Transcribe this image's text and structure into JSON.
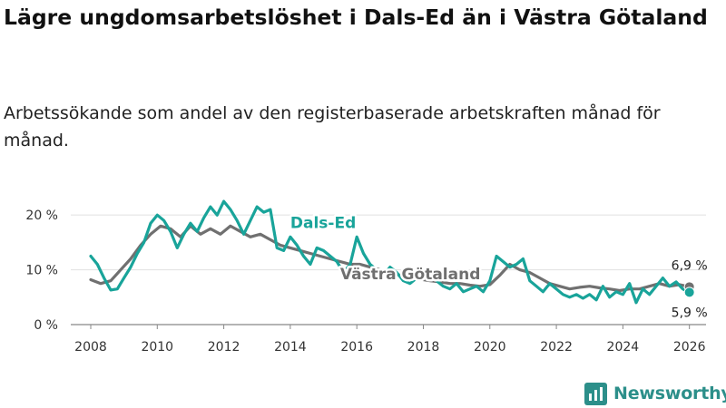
{
  "title": "Lägre ungdomsarbetslöshet i Dals-Ed än i Västra Götaland",
  "subtitle": "Arbetssökande som andel av den registerbaserade arbetskraften månad för månad.",
  "brand": {
    "name": "Newsworthy",
    "icon": "newsworthy-logo-icon"
  },
  "colors": {
    "dals_ed": "#19a49a",
    "vastra_gotaland": "#707070",
    "grid": "#e1e1e1",
    "axis": "#888888",
    "brand": "#2c8f8a"
  },
  "chart_data": {
    "type": "line",
    "title": "Lägre ungdomsarbetslöshet i Dals-Ed än i Västra Götaland",
    "subtitle": "Arbetssökande som andel av den registerbaserade arbetskraften månad för månad.",
    "xlabel": "",
    "ylabel": "",
    "x_unit": "år",
    "y_unit": "procent",
    "xlim": [
      2007.4,
      2026.5
    ],
    "ylim": [
      0,
      24
    ],
    "grid": true,
    "y_ticks": [
      {
        "value": 0,
        "label": "0 %"
      },
      {
        "value": 10,
        "label": "10 %"
      },
      {
        "value": 20,
        "label": "20 %"
      }
    ],
    "x_ticks": [
      {
        "value": 2008,
        "label": "2008"
      },
      {
        "value": 2010,
        "label": "2010"
      },
      {
        "value": 2012,
        "label": "2012"
      },
      {
        "value": 2014,
        "label": "2014"
      },
      {
        "value": 2016,
        "label": "2016"
      },
      {
        "value": 2018,
        "label": "2018"
      },
      {
        "value": 2020,
        "label": "2020"
      },
      {
        "value": 2022,
        "label": "2022"
      },
      {
        "value": 2024,
        "label": "2024"
      },
      {
        "value": 2026,
        "label": "2026"
      }
    ],
    "series": [
      {
        "name": "Västra Götaland",
        "color": "#707070",
        "label_at": [
          2015.5,
          8.3
        ],
        "end_label": "6,9 %",
        "x": [
          2008.0,
          2008.3,
          2008.6,
          2008.9,
          2009.2,
          2009.5,
          2009.8,
          2010.1,
          2010.4,
          2010.7,
          2011.0,
          2011.3,
          2011.6,
          2011.9,
          2012.2,
          2012.5,
          2012.8,
          2013.1,
          2013.4,
          2013.7,
          2014.0,
          2014.3,
          2014.6,
          2014.9,
          2015.2,
          2015.5,
          2015.8,
          2016.1,
          2016.4,
          2016.7,
          2017.0,
          2017.3,
          2017.6,
          2017.9,
          2018.2,
          2018.5,
          2018.8,
          2019.1,
          2019.4,
          2019.7,
          2020.0,
          2020.3,
          2020.6,
          2020.9,
          2021.2,
          2021.5,
          2021.8,
          2022.1,
          2022.4,
          2022.7,
          2023.0,
          2023.3,
          2023.6,
          2023.9,
          2024.2,
          2024.5,
          2024.8,
          2025.1,
          2025.4,
          2025.7,
          2026.0
        ],
        "y": [
          8.2,
          7.5,
          8.0,
          10.0,
          12.0,
          14.5,
          16.5,
          18.0,
          17.5,
          16.0,
          18.0,
          16.5,
          17.5,
          16.5,
          18.0,
          17.0,
          16.0,
          16.5,
          15.5,
          14.5,
          14.0,
          13.5,
          13.0,
          12.5,
          12.0,
          11.5,
          11.0,
          11.0,
          10.5,
          10.0,
          9.5,
          9.0,
          8.7,
          8.3,
          8.0,
          7.8,
          7.5,
          7.5,
          7.2,
          7.0,
          7.3,
          9.0,
          11.0,
          10.0,
          9.5,
          8.5,
          7.5,
          7.0,
          6.5,
          6.8,
          7.0,
          6.7,
          6.5,
          6.2,
          6.5,
          6.5,
          7.0,
          7.5,
          7.0,
          7.3,
          6.9
        ]
      },
      {
        "name": "Dals-Ed",
        "color": "#19a49a",
        "label_at": [
          2014.0,
          17.6
        ],
        "end_label": "5,9 %",
        "x": [
          2008.0,
          2008.2,
          2008.4,
          2008.6,
          2008.8,
          2009.0,
          2009.2,
          2009.4,
          2009.6,
          2009.8,
          2010.0,
          2010.2,
          2010.4,
          2010.6,
          2010.8,
          2011.0,
          2011.2,
          2011.4,
          2011.6,
          2011.8,
          2012.0,
          2012.2,
          2012.4,
          2012.6,
          2012.8,
          2013.0,
          2013.2,
          2013.4,
          2013.6,
          2013.8,
          2014.0,
          2014.2,
          2014.4,
          2014.6,
          2014.8,
          2015.0,
          2015.2,
          2015.4,
          2015.6,
          2015.8,
          2016.0,
          2016.2,
          2016.4,
          2016.6,
          2016.8,
          2017.0,
          2017.2,
          2017.4,
          2017.6,
          2017.8,
          2018.0,
          2018.2,
          2018.4,
          2018.6,
          2018.8,
          2019.0,
          2019.2,
          2019.4,
          2019.6,
          2019.8,
          2020.0,
          2020.2,
          2020.4,
          2020.6,
          2020.8,
          2021.0,
          2021.2,
          2021.4,
          2021.6,
          2021.8,
          2022.0,
          2022.2,
          2022.4,
          2022.6,
          2022.8,
          2023.0,
          2023.2,
          2023.4,
          2023.6,
          2023.8,
          2024.0,
          2024.2,
          2024.4,
          2024.6,
          2024.8,
          2025.0,
          2025.2,
          2025.4,
          2025.6,
          2025.8,
          2026.0
        ],
        "y": [
          12.5,
          11.0,
          8.5,
          6.3,
          6.5,
          8.5,
          10.5,
          13.0,
          15.0,
          18.5,
          20.0,
          19.0,
          17.0,
          14.0,
          16.5,
          18.5,
          17.0,
          19.5,
          21.5,
          20.0,
          22.5,
          21.0,
          19.0,
          16.5,
          19.0,
          21.5,
          20.5,
          21.0,
          14.0,
          13.5,
          16.0,
          14.5,
          12.5,
          11.0,
          14.0,
          13.5,
          12.5,
          11.5,
          9.5,
          11.0,
          16.0,
          13.0,
          11.0,
          10.0,
          9.0,
          10.5,
          9.5,
          8.0,
          7.5,
          8.5,
          9.5,
          10.0,
          8.0,
          7.0,
          6.5,
          7.5,
          6.0,
          6.5,
          7.0,
          6.0,
          8.0,
          12.5,
          11.5,
          10.5,
          11.0,
          12.0,
          8.0,
          7.0,
          6.0,
          7.5,
          6.5,
          5.5,
          5.0,
          5.5,
          4.8,
          5.5,
          4.5,
          7.0,
          5.0,
          6.0,
          5.5,
          7.5,
          4.0,
          6.5,
          5.5,
          7.0,
          8.5,
          7.0,
          7.8,
          6.5,
          5.9
        ]
      }
    ],
    "end_markers": [
      {
        "series": "Västra Götaland",
        "x": 2026.0,
        "y": 6.9,
        "label": "6,9 %",
        "label_position": "above"
      },
      {
        "series": "Dals-Ed",
        "x": 2026.0,
        "y": 5.9,
        "label": "5,9 %",
        "label_position": "below"
      }
    ]
  }
}
